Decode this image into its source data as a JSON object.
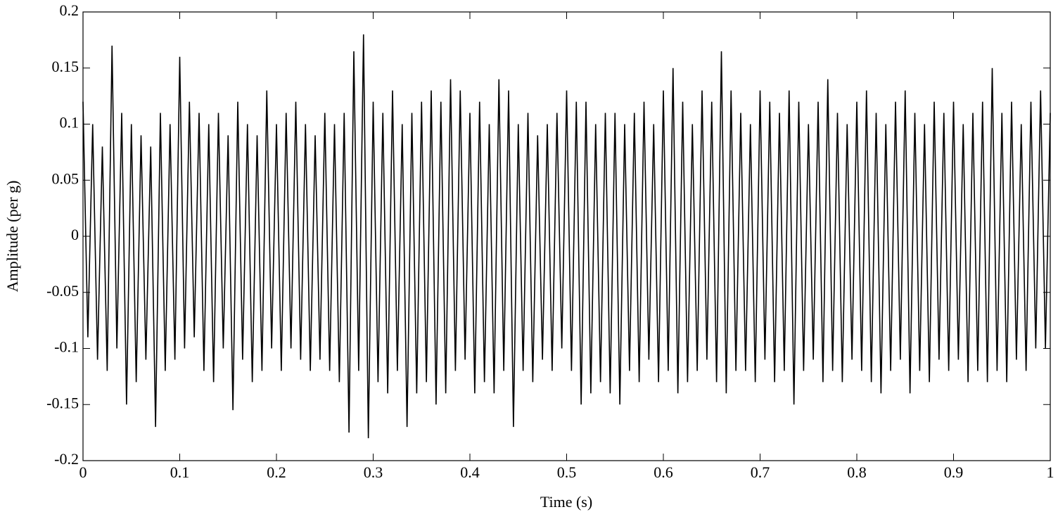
{
  "chart_data": {
    "type": "line",
    "xlabel": "Time (s)",
    "ylabel": "Amplitude (per g)",
    "color": "#000000",
    "xlim": [
      0,
      1
    ],
    "ylim": [
      -0.2,
      0.2
    ],
    "xticks": [
      0,
      0.1,
      0.2,
      0.3,
      0.4,
      0.5,
      0.6,
      0.7,
      0.8,
      0.9,
      1
    ],
    "yticks": [
      -0.2,
      -0.15,
      -0.1,
      -0.05,
      0,
      0.05,
      0.1,
      0.15,
      0.2
    ],
    "x": [
      0,
      0.005,
      0.01,
      0.015,
      0.02,
      0.025,
      0.03,
      0.035,
      0.04,
      0.045,
      0.05,
      0.055,
      0.06,
      0.065,
      0.07,
      0.075,
      0.08,
      0.085,
      0.09,
      0.095,
      0.1,
      0.105,
      0.11,
      0.115,
      0.12,
      0.125,
      0.13,
      0.135,
      0.14,
      0.145,
      0.15,
      0.155,
      0.16,
      0.165,
      0.17,
      0.175,
      0.18,
      0.185,
      0.19,
      0.195,
      0.2,
      0.205,
      0.21,
      0.215,
      0.22,
      0.225,
      0.23,
      0.235,
      0.24,
      0.245,
      0.25,
      0.255,
      0.26,
      0.265,
      0.27,
      0.275,
      0.28,
      0.285,
      0.29,
      0.295,
      0.3,
      0.305,
      0.31,
      0.315,
      0.32,
      0.325,
      0.33,
      0.335,
      0.34,
      0.345,
      0.35,
      0.355,
      0.36,
      0.365,
      0.37,
      0.375,
      0.38,
      0.385,
      0.39,
      0.395,
      0.4,
      0.405,
      0.41,
      0.415,
      0.42,
      0.425,
      0.43,
      0.435,
      0.44,
      0.445,
      0.45,
      0.455,
      0.46,
      0.465,
      0.47,
      0.475,
      0.48,
      0.485,
      0.49,
      0.495,
      0.5,
      0.505,
      0.51,
      0.515,
      0.52,
      0.525,
      0.53,
      0.535,
      0.54,
      0.545,
      0.55,
      0.555,
      0.56,
      0.565,
      0.57,
      0.575,
      0.58,
      0.585,
      0.59,
      0.595,
      0.6,
      0.605,
      0.61,
      0.615,
      0.62,
      0.625,
      0.63,
      0.635,
      0.64,
      0.645,
      0.65,
      0.655,
      0.66,
      0.665,
      0.67,
      0.675,
      0.68,
      0.685,
      0.69,
      0.695,
      0.7,
      0.705,
      0.71,
      0.715,
      0.72,
      0.725,
      0.73,
      0.735,
      0.74,
      0.745,
      0.75,
      0.755,
      0.76,
      0.765,
      0.77,
      0.775,
      0.78,
      0.785,
      0.79,
      0.795,
      0.8,
      0.805,
      0.81,
      0.815,
      0.82,
      0.825,
      0.83,
      0.835,
      0.84,
      0.845,
      0.85,
      0.855,
      0.86,
      0.865,
      0.87,
      0.875,
      0.88,
      0.885,
      0.89,
      0.895,
      0.9,
      0.905,
      0.91,
      0.915,
      0.92,
      0.925,
      0.93,
      0.935,
      0.94,
      0.945,
      0.95,
      0.955,
      0.96,
      0.965,
      0.97,
      0.975,
      0.98,
      0.985,
      0.99,
      0.995,
      1
    ],
    "values": [
      0.12,
      -0.09,
      0.1,
      -0.11,
      0.08,
      -0.12,
      0.17,
      -0.1,
      0.11,
      -0.15,
      0.1,
      -0.13,
      0.09,
      -0.11,
      0.08,
      -0.17,
      0.11,
      -0.12,
      0.1,
      -0.11,
      0.16,
      -0.1,
      0.12,
      -0.09,
      0.11,
      -0.12,
      0.1,
      -0.13,
      0.11,
      -0.1,
      0.09,
      -0.155,
      0.12,
      -0.11,
      0.1,
      -0.13,
      0.09,
      -0.12,
      0.13,
      -0.1,
      0.1,
      -0.12,
      0.11,
      -0.1,
      0.12,
      -0.11,
      0.1,
      -0.12,
      0.09,
      -0.11,
      0.11,
      -0.12,
      0.1,
      -0.13,
      0.11,
      -0.175,
      0.165,
      -0.12,
      0.18,
      -0.18,
      0.12,
      -0.13,
      0.11,
      -0.14,
      0.13,
      -0.12,
      0.1,
      -0.17,
      0.11,
      -0.14,
      0.12,
      -0.13,
      0.13,
      -0.15,
      0.12,
      -0.14,
      0.14,
      -0.12,
      0.13,
      -0.11,
      0.11,
      -0.14,
      0.12,
      -0.13,
      0.1,
      -0.14,
      0.14,
      -0.12,
      0.13,
      -0.17,
      0.1,
      -0.12,
      0.11,
      -0.13,
      0.09,
      -0.11,
      0.1,
      -0.12,
      0.11,
      -0.1,
      0.13,
      -0.12,
      0.12,
      -0.15,
      0.12,
      -0.14,
      0.1,
      -0.13,
      0.11,
      -0.14,
      0.11,
      -0.15,
      0.1,
      -0.12,
      0.11,
      -0.13,
      0.12,
      -0.11,
      0.1,
      -0.13,
      0.13,
      -0.12,
      0.15,
      -0.14,
      0.12,
      -0.13,
      0.1,
      -0.12,
      0.13,
      -0.11,
      0.12,
      -0.13,
      0.165,
      -0.14,
      0.13,
      -0.12,
      0.11,
      -0.12,
      0.1,
      -0.13,
      0.13,
      -0.11,
      0.12,
      -0.13,
      0.11,
      -0.12,
      0.13,
      -0.15,
      0.12,
      -0.12,
      0.1,
      -0.11,
      0.12,
      -0.13,
      0.14,
      -0.12,
      0.11,
      -0.13,
      0.1,
      -0.11,
      0.12,
      -0.12,
      0.13,
      -0.13,
      0.11,
      -0.14,
      0.1,
      -0.12,
      0.12,
      -0.11,
      0.13,
      -0.14,
      0.11,
      -0.12,
      0.1,
      -0.13,
      0.12,
      -0.11,
      0.11,
      -0.12,
      0.12,
      -0.11,
      0.1,
      -0.13,
      0.11,
      -0.12,
      0.12,
      -0.13,
      0.15,
      -0.12,
      0.11,
      -0.13,
      0.12,
      -0.11,
      0.1,
      -0.12,
      0.12,
      -0.1,
      0.13,
      -0.1,
      0.11
    ]
  }
}
